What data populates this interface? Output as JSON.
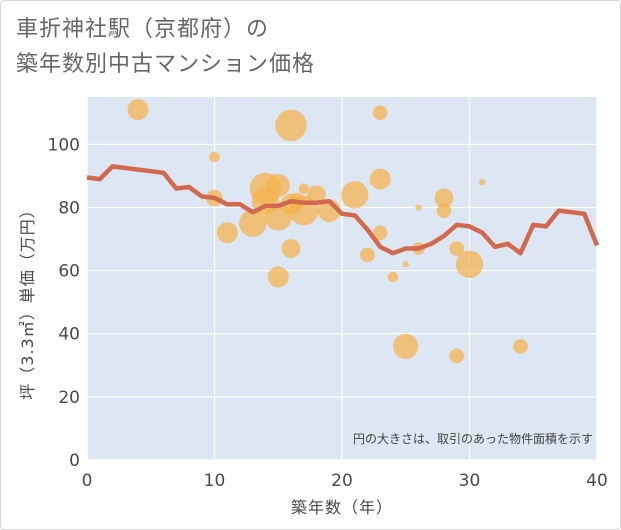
{
  "title_lines": [
    "車折神社駅（京都府）の",
    "築年数別中古マンション価格"
  ],
  "colors": {
    "bubble": "#f5b14a",
    "line": "#d2684d",
    "plot_bg": "#dde6f3",
    "grid": "#ffffff"
  },
  "chart_data": {
    "type": "scatter",
    "xlabel": "築年数（年）",
    "ylabel": "坪（3.3㎡）単価（万円）",
    "xlim": [
      0,
      40
    ],
    "ylim": [
      0,
      115
    ],
    "xticks": [
      0,
      10,
      20,
      30,
      40
    ],
    "yticks": [
      0,
      20,
      40,
      60,
      80,
      100
    ],
    "grid": true,
    "note": "円の大きさは、取引のあった物件面積を示す",
    "bubbles": [
      {
        "x": 4,
        "y": 111,
        "size": 10
      },
      {
        "x": 10,
        "y": 96,
        "size": 5
      },
      {
        "x": 10,
        "y": 83,
        "size": 8
      },
      {
        "x": 11,
        "y": 72,
        "size": 10
      },
      {
        "x": 13,
        "y": 75,
        "size": 13
      },
      {
        "x": 14,
        "y": 86,
        "size": 15
      },
      {
        "x": 14,
        "y": 82,
        "size": 13
      },
      {
        "x": 15,
        "y": 87,
        "size": 11
      },
      {
        "x": 15,
        "y": 77,
        "size": 13
      },
      {
        "x": 15,
        "y": 58,
        "size": 10
      },
      {
        "x": 16,
        "y": 106,
        "size": 15
      },
      {
        "x": 16,
        "y": 81,
        "size": 10
      },
      {
        "x": 16,
        "y": 67,
        "size": 9
      },
      {
        "x": 16.5,
        "y": 82,
        "size": 8
      },
      {
        "x": 17,
        "y": 86,
        "size": 5
      },
      {
        "x": 17,
        "y": 79,
        "size": 14
      },
      {
        "x": 18,
        "y": 84,
        "size": 9
      },
      {
        "x": 19,
        "y": 79,
        "size": 11
      },
      {
        "x": 21,
        "y": 84,
        "size": 13
      },
      {
        "x": 22,
        "y": 65,
        "size": 7
      },
      {
        "x": 23,
        "y": 110,
        "size": 7
      },
      {
        "x": 23,
        "y": 89,
        "size": 10
      },
      {
        "x": 23,
        "y": 72,
        "size": 7
      },
      {
        "x": 24,
        "y": 58,
        "size": 5
      },
      {
        "x": 25,
        "y": 36,
        "size": 12
      },
      {
        "x": 25,
        "y": 62,
        "size": 3
      },
      {
        "x": 26,
        "y": 80,
        "size": 3
      },
      {
        "x": 26,
        "y": 67,
        "size": 6
      },
      {
        "x": 28,
        "y": 83,
        "size": 9
      },
      {
        "x": 28,
        "y": 79,
        "size": 7
      },
      {
        "x": 29,
        "y": 67,
        "size": 7
      },
      {
        "x": 29,
        "y": 33,
        "size": 7
      },
      {
        "x": 30,
        "y": 62,
        "size": 13
      },
      {
        "x": 31,
        "y": 88,
        "size": 3
      },
      {
        "x": 34,
        "y": 36,
        "size": 7
      }
    ],
    "series": [
      {
        "x": [
          0,
          1,
          2,
          3,
          4,
          5,
          6,
          7,
          8,
          9,
          10,
          11,
          12,
          13,
          14,
          15,
          16,
          17,
          18,
          19,
          20,
          21,
          22,
          23,
          24,
          25,
          26,
          27,
          28,
          29,
          30,
          31,
          32,
          33,
          34,
          35,
          36,
          37,
          38,
          39,
          40
        ],
        "y": [
          89.5,
          89,
          93,
          92.5,
          92,
          91.5,
          91,
          86,
          86.5,
          83.5,
          83,
          81,
          81,
          78.5,
          80.5,
          80.5,
          82,
          81.5,
          81.5,
          82,
          78,
          77.5,
          73,
          67.5,
          65.5,
          67,
          67,
          68.5,
          71,
          74.5,
          74,
          72,
          67.5,
          68.5,
          65.5,
          74.5,
          74,
          79,
          78.5,
          78,
          68
        ]
      }
    ]
  }
}
